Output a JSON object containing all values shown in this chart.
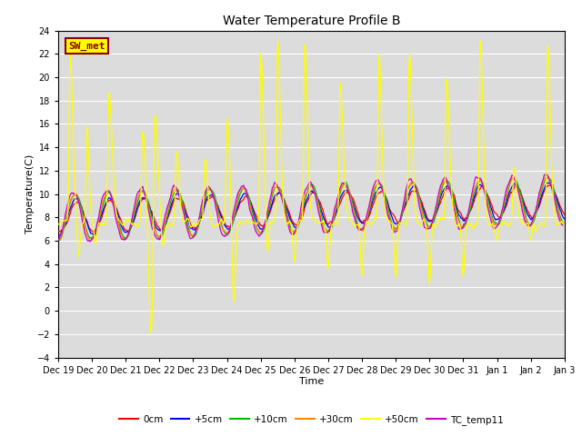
{
  "title": "Water Temperature Profile B",
  "xlabel": "Time",
  "ylabel": "Temperature(C)",
  "ylim": [
    -4,
    24
  ],
  "yticks": [
    -4,
    -2,
    0,
    2,
    4,
    6,
    8,
    10,
    12,
    14,
    16,
    18,
    20,
    22,
    24
  ],
  "bg_color": "#dcdcdc",
  "annotation_text": "SW_met",
  "annotation_bg": "#ffff00",
  "annotation_border": "#8B0000",
  "annotation_text_color": "#8B0000",
  "legend_entries": [
    "0cm",
    "+5cm",
    "+10cm",
    "+30cm",
    "+50cm",
    "TC_temp11"
  ],
  "legend_colors": [
    "#ff0000",
    "#0000ff",
    "#00bb00",
    "#ff8800",
    "#ffff00",
    "#cc00cc"
  ],
  "date_labels": [
    "Dec 19",
    "Dec 20",
    "Dec 21",
    "Dec 22",
    "Dec 23",
    "Dec 24",
    "Dec 25",
    "Dec 26",
    "Dec 27",
    "Dec 28",
    "Dec 29",
    "Dec 30",
    "Dec 31",
    "Jan 1",
    "Jan 2",
    "Jan 3"
  ]
}
